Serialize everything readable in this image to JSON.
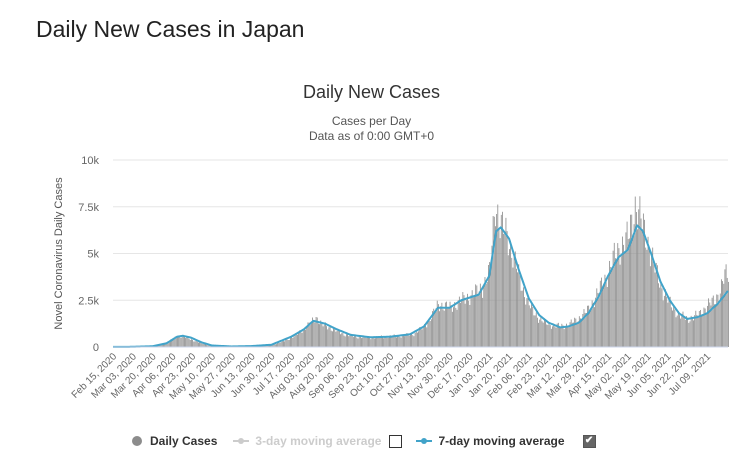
{
  "page": {
    "heading": "Daily New Cases in Japan"
  },
  "chart_data": {
    "type": "bar",
    "title": "Daily New Cases",
    "subtitle_line1": "Cases per Day",
    "subtitle_line2": "Data as of 0:00 GMT+0",
    "ylabel": "Novel Coronavirus Daily Cases",
    "xlabel": "",
    "ylim": [
      0,
      10000
    ],
    "yticks": [
      {
        "value": 0,
        "label": "0"
      },
      {
        "value": 2500,
        "label": "2.5k"
      },
      {
        "value": 5000,
        "label": "5k"
      },
      {
        "value": 7500,
        "label": "7.5k"
      },
      {
        "value": 10000,
        "label": "10k"
      }
    ],
    "grid": true,
    "xlim": [
      "2020-02-15",
      "2021-07-27"
    ],
    "xticks": [
      "Feb 15, 2020",
      "Mar 03, 2020",
      "Mar 20, 2020",
      "Apr 06, 2020",
      "Apr 23, 2020",
      "May 10, 2020",
      "May 27, 2020",
      "Jun 13, 2020",
      "Jun 30, 2020",
      "Jul 17, 2020",
      "Aug 03, 2020",
      "Aug 20, 2020",
      "Sep 06, 2020",
      "Sep 23, 2020",
      "Oct 10, 2020",
      "Oct 27, 2020",
      "Nov 13, 2020",
      "Nov 30, 2020",
      "Dec 17, 2020",
      "Jan 03, 2021",
      "Jan 20, 2021",
      "Feb 06, 2021",
      "Feb 23, 2021",
      "Mar 12, 2021",
      "Mar 29, 2021",
      "Apr 15, 2021",
      "May 02, 2021",
      "May 19, 2021",
      "Jun 05, 2021",
      "Jun 22, 2021",
      "Jul 09, 2021"
    ],
    "series": [
      {
        "name": "Daily Cases",
        "kind": "bar",
        "color": "#8c8c8c",
        "points": [
          [
            "2020-02-15",
            5
          ],
          [
            "2020-03-01",
            15
          ],
          [
            "2020-03-15",
            40
          ],
          [
            "2020-03-25",
            80
          ],
          [
            "2020-04-01",
            250
          ],
          [
            "2020-04-06",
            400
          ],
          [
            "2020-04-10",
            600
          ],
          [
            "2020-04-15",
            550
          ],
          [
            "2020-04-20",
            450
          ],
          [
            "2020-04-28",
            250
          ],
          [
            "2020-05-05",
            120
          ],
          [
            "2020-05-15",
            40
          ],
          [
            "2020-05-25",
            25
          ],
          [
            "2020-06-05",
            40
          ],
          [
            "2020-06-20",
            60
          ],
          [
            "2020-07-01",
            120
          ],
          [
            "2020-07-10",
            300
          ],
          [
            "2020-07-20",
            600
          ],
          [
            "2020-07-28",
            1000
          ],
          [
            "2020-08-03",
            1300
          ],
          [
            "2020-08-07",
            1600
          ],
          [
            "2020-08-12",
            1200
          ],
          [
            "2020-08-20",
            1000
          ],
          [
            "2020-08-30",
            700
          ],
          [
            "2020-09-10",
            550
          ],
          [
            "2020-09-23",
            500
          ],
          [
            "2020-10-05",
            550
          ],
          [
            "2020-10-20",
            600
          ],
          [
            "2020-10-30",
            700
          ],
          [
            "2020-11-08",
            1100
          ],
          [
            "2020-11-15",
            1700
          ],
          [
            "2020-11-20",
            2300
          ],
          [
            "2020-11-30",
            2100
          ],
          [
            "2020-12-10",
            2500
          ],
          [
            "2020-12-20",
            2800
          ],
          [
            "2020-12-28",
            3200
          ],
          [
            "2021-01-03",
            4000
          ],
          [
            "2021-01-08",
            7800
          ],
          [
            "2021-01-12",
            6500
          ],
          [
            "2021-01-18",
            6000
          ],
          [
            "2021-01-25",
            4500
          ],
          [
            "2021-02-01",
            3000
          ],
          [
            "2021-02-08",
            2000
          ],
          [
            "2021-02-15",
            1500
          ],
          [
            "2021-02-23",
            1200
          ],
          [
            "2021-03-05",
            1100
          ],
          [
            "2021-03-12",
            1200
          ],
          [
            "2021-03-20",
            1500
          ],
          [
            "2021-03-29",
            2000
          ],
          [
            "2021-04-05",
            2800
          ],
          [
            "2021-04-12",
            3600
          ],
          [
            "2021-04-20",
            4800
          ],
          [
            "2021-04-28",
            5600
          ],
          [
            "2021-05-02",
            5800
          ],
          [
            "2021-05-08",
            7600
          ],
          [
            "2021-05-13",
            6800
          ],
          [
            "2021-05-19",
            5600
          ],
          [
            "2021-05-25",
            4200
          ],
          [
            "2021-06-01",
            3000
          ],
          [
            "2021-06-08",
            2200
          ],
          [
            "2021-06-15",
            1700
          ],
          [
            "2021-06-22",
            1500
          ],
          [
            "2021-07-01",
            1700
          ],
          [
            "2021-07-09",
            2200
          ],
          [
            "2021-07-15",
            2500
          ],
          [
            "2021-07-20",
            3000
          ],
          [
            "2021-07-24",
            3800
          ],
          [
            "2021-07-27",
            3900
          ]
        ]
      },
      {
        "name": "3-day moving average",
        "kind": "line",
        "visible": false,
        "color": "#cccccc"
      },
      {
        "name": "7-day moving average",
        "kind": "line",
        "visible": true,
        "color": "#41a3c9",
        "points": [
          [
            "2020-02-15",
            5
          ],
          [
            "2020-03-01",
            10
          ],
          [
            "2020-03-20",
            40
          ],
          [
            "2020-04-01",
            200
          ],
          [
            "2020-04-10",
            550
          ],
          [
            "2020-04-15",
            600
          ],
          [
            "2020-04-22",
            500
          ],
          [
            "2020-05-01",
            250
          ],
          [
            "2020-05-10",
            80
          ],
          [
            "2020-05-27",
            30
          ],
          [
            "2020-06-13",
            50
          ],
          [
            "2020-06-30",
            120
          ],
          [
            "2020-07-17",
            550
          ],
          [
            "2020-07-28",
            950
          ],
          [
            "2020-08-05",
            1400
          ],
          [
            "2020-08-15",
            1250
          ],
          [
            "2020-08-25",
            950
          ],
          [
            "2020-09-06",
            650
          ],
          [
            "2020-09-23",
            520
          ],
          [
            "2020-10-10",
            550
          ],
          [
            "2020-10-27",
            680
          ],
          [
            "2020-11-08",
            1100
          ],
          [
            "2020-11-20",
            2100
          ],
          [
            "2020-11-30",
            2100
          ],
          [
            "2020-12-10",
            2500
          ],
          [
            "2020-12-25",
            2800
          ],
          [
            "2021-01-03",
            3800
          ],
          [
            "2021-01-09",
            6200
          ],
          [
            "2021-01-13",
            6400
          ],
          [
            "2021-01-20",
            5800
          ],
          [
            "2021-01-28",
            4200
          ],
          [
            "2021-02-06",
            2600
          ],
          [
            "2021-02-15",
            1700
          ],
          [
            "2021-02-23",
            1300
          ],
          [
            "2021-03-05",
            1050
          ],
          [
            "2021-03-12",
            1100
          ],
          [
            "2021-03-21",
            1300
          ],
          [
            "2021-03-29",
            1800
          ],
          [
            "2021-04-07",
            2700
          ],
          [
            "2021-04-15",
            3800
          ],
          [
            "2021-04-24",
            4800
          ],
          [
            "2021-05-02",
            5200
          ],
          [
            "2021-05-10",
            6500
          ],
          [
            "2021-05-15",
            6200
          ],
          [
            "2021-05-22",
            5000
          ],
          [
            "2021-05-30",
            3500
          ],
          [
            "2021-06-07",
            2500
          ],
          [
            "2021-06-15",
            1800
          ],
          [
            "2021-06-22",
            1500
          ],
          [
            "2021-07-01",
            1600
          ],
          [
            "2021-07-09",
            1800
          ],
          [
            "2021-07-18",
            2300
          ],
          [
            "2021-07-27",
            3000
          ]
        ]
      }
    ],
    "legend": {
      "placement": "bottom",
      "items": [
        {
          "label": "Daily Cases",
          "active": true
        },
        {
          "label": "3-day moving average",
          "active": false,
          "checkbox_checked": false
        },
        {
          "label": "7-day moving average",
          "active": true,
          "checkbox_checked": true
        }
      ]
    }
  }
}
